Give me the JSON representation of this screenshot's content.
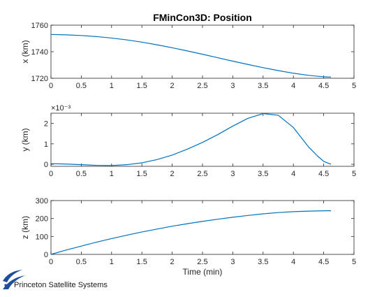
{
  "figure": {
    "title": "FMinCon3D: Position",
    "logo_text": "Princeton Satellite Systems"
  },
  "colors": {
    "line": "#0072bd",
    "axes": "#262626",
    "background": "#ffffff",
    "logo": "#1f4e9c"
  },
  "chart_data": [
    {
      "type": "line",
      "name": "x-position",
      "title": "FMinCon3D: Position",
      "xlabel": "",
      "ylabel": "x (km)",
      "xlim": [
        0,
        5
      ],
      "ylim": [
        1720,
        1760
      ],
      "xticks": [
        0,
        0.5,
        1,
        1.5,
        2,
        2.5,
        3,
        3.5,
        4,
        4.5,
        5
      ],
      "xtick_labels": [
        "0",
        "0.5",
        "1",
        "1.5",
        "2",
        "2.5",
        "3",
        "3.5",
        "4",
        "4.5",
        "5"
      ],
      "yticks": [
        1720,
        1740,
        1760
      ],
      "ytick_labels": [
        "1720",
        "1740",
        "1760"
      ],
      "exponent_label": "",
      "grid": false,
      "x": [
        0,
        0.25,
        0.5,
        0.75,
        1,
        1.25,
        1.5,
        1.75,
        2,
        2.25,
        2.5,
        2.75,
        3,
        3.25,
        3.5,
        3.75,
        4,
        4.25,
        4.5,
        4.62
      ],
      "y": [
        1753,
        1752.7,
        1752.2,
        1751.4,
        1750.3,
        1748.9,
        1747.2,
        1745.2,
        1743,
        1740.6,
        1738.1,
        1735.5,
        1732.9,
        1730.4,
        1728,
        1725.8,
        1723.8,
        1722.2,
        1721.1,
        1720.9
      ]
    },
    {
      "type": "line",
      "name": "y-position",
      "xlabel": "",
      "ylabel": "y (km)",
      "xlim": [
        0,
        5
      ],
      "ylim": [
        -0.0001,
        0.0025
      ],
      "xticks": [
        0,
        0.5,
        1,
        1.5,
        2,
        2.5,
        3,
        3.5,
        4,
        4.5,
        5
      ],
      "xtick_labels": [
        "0",
        "0.5",
        "1",
        "1.5",
        "2",
        "2.5",
        "3",
        "3.5",
        "4",
        "4.5",
        "5"
      ],
      "yticks": [
        0,
        0.001,
        0.002
      ],
      "ytick_labels": [
        "0",
        "1",
        "2"
      ],
      "exponent_label": "×10⁻³",
      "grid": false,
      "x": [
        0,
        0.25,
        0.5,
        0.75,
        1,
        1.25,
        1.5,
        1.75,
        2,
        2.25,
        2.5,
        2.75,
        3,
        3.25,
        3.5,
        3.75,
        4,
        4.25,
        4.4,
        4.5,
        4.62
      ],
      "y": [
        3e-05,
        1e-05,
        -2e-05,
        -5e-05,
        -6e-05,
        -2e-05,
        7e-05,
        0.00023,
        0.00045,
        0.00074,
        0.00107,
        0.00145,
        0.00187,
        0.00225,
        0.00248,
        0.0024,
        0.0018,
        0.00085,
        0.0004,
        0.00014,
        0.0
      ]
    },
    {
      "type": "line",
      "name": "z-position",
      "xlabel": "Time (min)",
      "ylabel": "z (km)",
      "xlim": [
        0,
        5
      ],
      "ylim": [
        0,
        300
      ],
      "xticks": [
        0,
        0.5,
        1,
        1.5,
        2,
        2.5,
        3,
        3.5,
        4,
        4.5,
        5
      ],
      "xtick_labels": [
        "0",
        "0.5",
        "1",
        "1.5",
        "2",
        "2.5",
        "3",
        "3.5",
        "4",
        "4.5",
        "5"
      ],
      "yticks": [
        0,
        100,
        200,
        300
      ],
      "ytick_labels": [
        "0",
        "100",
        "200",
        "300"
      ],
      "exponent_label": "",
      "grid": false,
      "x": [
        0,
        0.25,
        0.5,
        0.75,
        1,
        1.25,
        1.5,
        1.75,
        2,
        2.25,
        2.5,
        2.75,
        3,
        3.25,
        3.5,
        3.75,
        4,
        4.25,
        4.5,
        4.62
      ],
      "y": [
        0,
        24,
        46,
        68,
        88,
        107,
        125,
        141,
        157,
        171,
        184,
        196,
        207,
        217,
        226,
        233,
        238,
        241,
        243,
        243
      ]
    }
  ]
}
